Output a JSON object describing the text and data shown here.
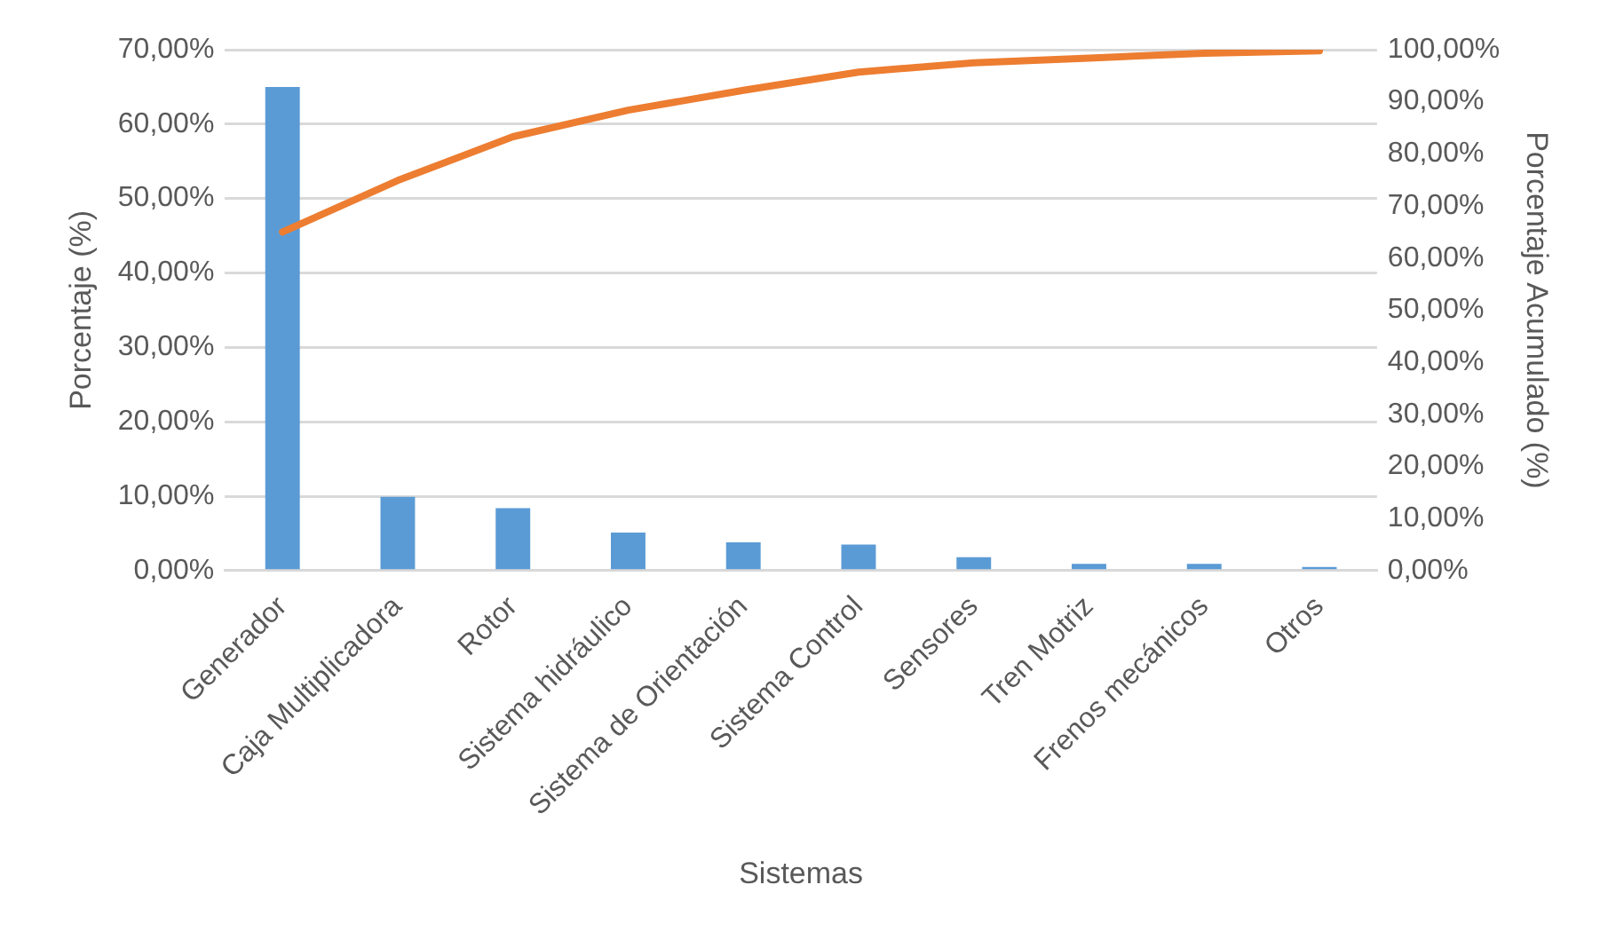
{
  "chart_data": {
    "type": "bar",
    "xlabel": "Sistemas",
    "ylabel": "Porcentaje (%)",
    "y2label": "Porcentaje Acumulado (%)",
    "categories": [
      "Generador",
      "Caja Multiplicadora",
      "Rotor",
      "Sistema hidráulico",
      "Sistema de Orientación",
      "Sistema Control",
      "Sensores",
      "Tren Motriz",
      "Frenos mecánicos",
      "Otros"
    ],
    "series": [
      {
        "color": "#5b9bd5",
        "values": [
          65,
          9.9,
          8.4,
          5.1,
          3.8,
          3.5,
          1.8,
          0.9,
          0.9,
          0.5
        ]
      },
      {
        "type": "line",
        "axis": "y2",
        "color": "#ed7d31",
        "values": [
          65,
          74.9,
          83.3,
          88.4,
          92.2,
          95.7,
          97.5,
          98.4,
          99.3,
          99.8
        ]
      }
    ],
    "ylim": [
      0,
      70
    ],
    "yticks": [
      {
        "value": 0,
        "label": "0,00%"
      },
      {
        "value": 10,
        "label": "10,00%"
      },
      {
        "value": 20,
        "label": "20,00%"
      },
      {
        "value": 30,
        "label": "30,00%"
      },
      {
        "value": 40,
        "label": "40,00%"
      },
      {
        "value": 50,
        "label": "50,00%"
      },
      {
        "value": 60,
        "label": "60,00%"
      },
      {
        "value": 70,
        "label": "70,00%"
      }
    ],
    "y2lim": [
      0,
      100
    ],
    "y2ticks": [
      {
        "value": 0,
        "label": "0,00%"
      },
      {
        "value": 10,
        "label": "10,00%"
      },
      {
        "value": 20,
        "label": "20,00%"
      },
      {
        "value": 30,
        "label": "30,00%"
      },
      {
        "value": 40,
        "label": "40,00%"
      },
      {
        "value": 50,
        "label": "50,00%"
      },
      {
        "value": 60,
        "label": "60,00%"
      },
      {
        "value": 70,
        "label": "70,00%"
      },
      {
        "value": 80,
        "label": "80,00%"
      },
      {
        "value": 90,
        "label": "90,00%"
      },
      {
        "value": 100,
        "label": "100,00%"
      }
    ],
    "grid": "y",
    "legend": false,
    "marker": "none"
  }
}
